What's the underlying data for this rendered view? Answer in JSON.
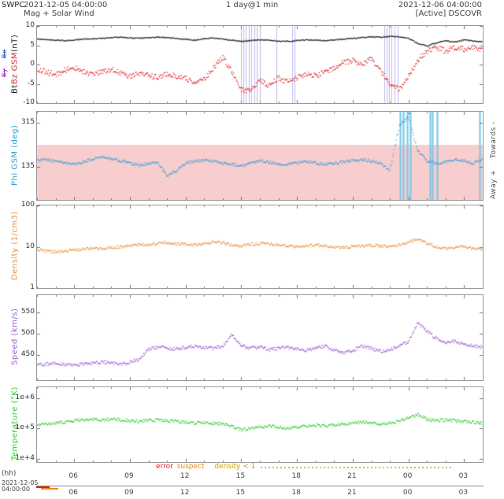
{
  "header": {
    "app": "SWPC",
    "start_time": "2021-12-05 04:00:00",
    "resolution": "1 day@1 min",
    "end_time": "2021-12-06 04:00:00",
    "subtitle": "Mag + Solar Wind",
    "source": "[Active] DSCOVR"
  },
  "footer": {
    "hh_label": "(hh)",
    "date_line1": "2021-12-05",
    "date_line2": "04:00:00",
    "next_strip_marks": [
      {
        "color": "#e02020",
        "from_hour": 4.0,
        "to_hour": 4.7,
        "dy": 1
      },
      {
        "color": "#e8881a",
        "from_hour": 4.25,
        "to_hour": 5.2,
        "dy": 3
      }
    ]
  },
  "chart_data": {
    "type": "scatter",
    "title": "Mag + Solar Wind (DSCOVR real-time solar wind, 1 day @ 1 min)",
    "x": {
      "label": "(hh)",
      "range_hours": [
        4,
        28
      ],
      "tick_labels": [
        "06",
        "09",
        "12",
        "15",
        "18",
        "21",
        "00",
        "03"
      ],
      "tick_hours": [
        6,
        9,
        12,
        15,
        18,
        21,
        24,
        27
      ]
    },
    "sample_hours": [
      4,
      4.5,
      5,
      5.5,
      6,
      6.5,
      7,
      7.5,
      8,
      8.5,
      9,
      9.5,
      10,
      10.5,
      11,
      11.5,
      12,
      12.5,
      13,
      13.5,
      14,
      14.5,
      15,
      15.5,
      16,
      16.5,
      17,
      17.5,
      18,
      18.5,
      19,
      19.5,
      20,
      20.5,
      21,
      21.5,
      22,
      22.5,
      23,
      23.5,
      24,
      24.5,
      25,
      25.5,
      26,
      26.5,
      27,
      27.5,
      28
    ],
    "panels": [
      {
        "id": "imf",
        "ylabel_parts": [
          {
            "text": "Bt ",
            "color": "#222222"
          },
          {
            "text": "Bz GSM ",
            "color": "#dd2222"
          },
          {
            "text": "(nT)",
            "color": "#222222"
          }
        ],
        "hidden_traces": [
          {
            "label": "Bx",
            "color": "#3355cc"
          },
          {
            "label": "By",
            "color": "#9933cc"
          }
        ],
        "scale": "linear",
        "ylim": [
          -10,
          10
        ],
        "yticks": [
          {
            "v": 10,
            "label": "10"
          },
          {
            "v": 5,
            "label": "5"
          },
          {
            "v": 0,
            "label": "0"
          },
          {
            "v": -5,
            "label": "-5"
          },
          {
            "v": -10,
            "label": "-10"
          }
        ],
        "series": [
          {
            "name": "Bt",
            "color": "#2a2a2a",
            "jitter": 0.13,
            "values": [
              6.6,
              6.5,
              6.3,
              6.2,
              6.4,
              6.6,
              6.7,
              6.8,
              7.0,
              7.1,
              6.9,
              6.8,
              7.0,
              7.1,
              7.0,
              6.8,
              6.5,
              6.3,
              6.7,
              6.9,
              6.6,
              6.3,
              6.0,
              6.2,
              6.4,
              6.3,
              6.1,
              6.0,
              6.2,
              6.4,
              6.3,
              6.2,
              6.4,
              6.6,
              6.8,
              7.0,
              7.2,
              7.1,
              7.3,
              7.2,
              6.8,
              5.5,
              4.8,
              5.6,
              6.2,
              5.8,
              6.4,
              6.1,
              5.9
            ]
          },
          {
            "name": "Bz GSM",
            "color": "#e02020",
            "jitter": 0.7,
            "values": [
              -1.2,
              -2.0,
              -2.5,
              -1.5,
              -0.8,
              -1.8,
              -2.6,
              -2.0,
              -1.2,
              -2.2,
              -3.0,
              -2.4,
              -2.8,
              -3.2,
              -2.6,
              -3.0,
              -3.5,
              -5.0,
              -4.0,
              -1.0,
              2.0,
              -2.0,
              -6.5,
              -7.0,
              -4.0,
              -5.5,
              -3.5,
              -4.5,
              -3.5,
              -2.5,
              -3.0,
              -2.0,
              -1.0,
              0.5,
              1.0,
              0.0,
              1.5,
              -1.5,
              -5.0,
              -6.5,
              -3.0,
              1.0,
              3.5,
              4.5,
              3.5,
              4.5,
              4.0,
              4.5,
              3.5
            ]
          }
        ],
        "event_lines": {
          "color": "#bcb8ea",
          "hours": [
            15.0,
            15.12,
            15.25,
            15.4,
            15.55,
            15.7,
            15.85,
            16.0,
            16.9,
            17.75,
            17.88,
            22.7,
            22.82,
            22.95,
            23.1,
            23.25,
            23.4
          ]
        }
      },
      {
        "id": "phi",
        "ylabel": "Phi GSM (deg)",
        "label_color": "#2e9fd0",
        "scale": "linear",
        "ylim": [
          0,
          360
        ],
        "yticks": [
          {
            "v": 315,
            "label": "315"
          },
          {
            "v": 135,
            "label": "135"
          }
        ],
        "band": {
          "from": 0,
          "to": 225,
          "color": "#f8cdcd"
        },
        "right_label_top": "Towards -",
        "right_label_bottom": "Away +",
        "series": [
          {
            "name": "Phi GSM",
            "color": "#3aa0d8",
            "jitter": 6,
            "values": [
              162,
              165,
              158,
              150,
              146,
              155,
              168,
              174,
              168,
              160,
              150,
              142,
              148,
              152,
              100,
              120,
              150,
              158,
              162,
              158,
              150,
              145,
              140,
              150,
              160,
              155,
              148,
              143,
              152,
              158,
              150,
              146,
              150,
              155,
              160,
              164,
              158,
              150,
              120,
              300,
              340,
              200,
              160,
              150,
              155,
              165,
              158,
              150,
              170
            ]
          }
        ],
        "spike_lines": {
          "color": "#7ec8e8",
          "hours": [
            23.55,
            23.7,
            23.95,
            24.1,
            25.15,
            25.3,
            25.55,
            27.85
          ]
        }
      },
      {
        "id": "density",
        "ylabel": "Density (1/cm3)",
        "label_color": "#e8913a",
        "scale": "log",
        "ylim": [
          1,
          100
        ],
        "yticks": [
          {
            "v": 100,
            "label": "100"
          },
          {
            "v": 10,
            "label": "10"
          },
          {
            "v": 1,
            "label": "1"
          }
        ],
        "series": [
          {
            "name": "Density",
            "color": "#e8913a",
            "jitter": 0.035,
            "values": [
              8.5,
              8.0,
              7.5,
              7.8,
              8.2,
              8.8,
              9.2,
              9.0,
              9.5,
              10.0,
              10.5,
              11.0,
              11.5,
              12.0,
              12.5,
              12.0,
              11.5,
              11.0,
              12.0,
              13.0,
              12.5,
              11.0,
              10.5,
              11.5,
              12.0,
              11.5,
              11.0,
              10.5,
              10.0,
              10.5,
              11.0,
              10.5,
              10.0,
              9.5,
              10.0,
              10.5,
              11.0,
              10.5,
              10.0,
              11.0,
              13.0,
              15.0,
              12.0,
              10.0,
              9.0,
              9.5,
              10.0,
              9.0,
              8.5
            ]
          }
        ]
      },
      {
        "id": "speed",
        "ylabel": "Speed (km/s)",
        "label_color": "#9a5fd0",
        "scale": "linear",
        "ylim": [
          390,
          590
        ],
        "yticks": [
          {
            "v": 550,
            "label": "550"
          },
          {
            "v": 500,
            "label": "500"
          },
          {
            "v": 450,
            "label": "450"
          }
        ],
        "series": [
          {
            "name": "Speed",
            "color": "#9a5fd0",
            "jitter": 4,
            "values": [
              425,
              428,
              430,
              427,
              425,
              428,
              430,
              432,
              430,
              428,
              432,
              440,
              462,
              468,
              465,
              463,
              468,
              470,
              468,
              465,
              470,
              498,
              472,
              465,
              468,
              462,
              465,
              468,
              463,
              460,
              465,
              470,
              462,
              455,
              460,
              470,
              465,
              458,
              462,
              470,
              480,
              525,
              505,
              488,
              478,
              482,
              475,
              470,
              468
            ]
          }
        ]
      },
      {
        "id": "temperature",
        "ylabel": "Temperature (°K)",
        "label_color": "#2ecc2e",
        "scale": "log",
        "ylim": [
          7900,
          2240000
        ],
        "yticks": [
          {
            "v": 1000000,
            "label": "1e+6"
          },
          {
            "v": 100000,
            "label": "1e+5"
          },
          {
            "v": 10000,
            "label": "1e+4"
          }
        ],
        "series": [
          {
            "name": "Temperature",
            "color": "#2ecc2e",
            "jitter": 0.05,
            "values": [
              130000,
              140000,
              150000,
              160000,
              180000,
              190000,
              200000,
              190000,
              200000,
              190000,
              180000,
              170000,
              180000,
              190000,
              180000,
              170000,
              160000,
              150000,
              160000,
              150000,
              140000,
              120000,
              90000,
              100000,
              110000,
              120000,
              110000,
              100000,
              110000,
              120000,
              130000,
              120000,
              130000,
              140000,
              150000,
              160000,
              150000,
              140000,
              150000,
              170000,
              220000,
              280000,
              200000,
              180000,
              190000,
              180000,
              170000,
              160000,
              150000
            ]
          }
        ]
      }
    ],
    "quality": {
      "legend": [
        {
          "label": "error",
          "color": "#e02020"
        },
        {
          "label": "suspect",
          "color": "#e8881a"
        },
        {
          "label": "density < 1",
          "color": "#c8a400"
        }
      ],
      "density_lt1_dots_hours": [
        16.1,
        26.4
      ]
    }
  }
}
